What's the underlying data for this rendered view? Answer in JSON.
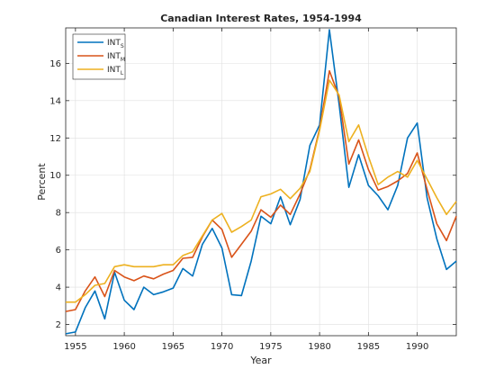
{
  "chart_data": {
    "type": "line",
    "title": "Canadian Interest Rates, 1954-1994",
    "xlabel": "Year",
    "ylabel": "Percent",
    "xlim": [
      1954,
      1994
    ],
    "ylim": [
      1.4,
      17.9
    ],
    "xticks": [
      1955,
      1960,
      1965,
      1970,
      1975,
      1980,
      1985,
      1990
    ],
    "yticks": [
      2,
      4,
      6,
      8,
      10,
      12,
      14,
      16
    ],
    "grid": true,
    "legend_position": "top-left",
    "x": [
      1954,
      1955,
      1956,
      1957,
      1958,
      1959,
      1960,
      1961,
      1962,
      1963,
      1964,
      1965,
      1966,
      1967,
      1968,
      1969,
      1970,
      1971,
      1972,
      1973,
      1974,
      1975,
      1976,
      1977,
      1978,
      1979,
      1980,
      1981,
      1982,
      1983,
      1984,
      1985,
      1986,
      1987,
      1988,
      1989,
      1990,
      1991,
      1992,
      1993,
      1994
    ],
    "series": [
      {
        "name": "INT",
        "subscript": "S",
        "color": "#0072BD",
        "values": [
          1.5,
          1.6,
          2.9,
          3.8,
          2.3,
          4.8,
          3.3,
          2.8,
          4.0,
          3.6,
          3.75,
          3.95,
          5.0,
          4.6,
          6.3,
          7.15,
          6.1,
          3.6,
          3.55,
          5.4,
          7.8,
          7.4,
          8.85,
          7.35,
          8.7,
          11.6,
          12.7,
          17.8,
          13.8,
          9.35,
          11.1,
          9.45,
          8.9,
          8.15,
          9.45,
          12.0,
          12.8,
          8.8,
          6.6,
          4.95,
          5.4
        ]
      },
      {
        "name": "INT",
        "subscript": "M",
        "color": "#D95319",
        "values": [
          2.7,
          2.8,
          3.8,
          4.55,
          3.5,
          4.9,
          4.55,
          4.35,
          4.6,
          4.45,
          4.7,
          4.9,
          5.55,
          5.6,
          6.7,
          7.6,
          7.1,
          5.6,
          6.3,
          7.0,
          8.15,
          7.75,
          8.4,
          7.9,
          9.0,
          10.3,
          12.5,
          15.6,
          14.2,
          10.6,
          11.9,
          10.3,
          9.2,
          9.4,
          9.7,
          10.1,
          11.2,
          9.25,
          7.4,
          6.5,
          7.8
        ]
      },
      {
        "name": "INT",
        "subscript": "L",
        "color": "#EDB120",
        "values": [
          3.2,
          3.2,
          3.6,
          4.1,
          4.2,
          5.1,
          5.2,
          5.1,
          5.1,
          5.1,
          5.2,
          5.2,
          5.7,
          5.9,
          6.75,
          7.6,
          7.95,
          6.95,
          7.25,
          7.6,
          8.85,
          9.0,
          9.25,
          8.75,
          9.3,
          10.2,
          12.4,
          15.1,
          14.3,
          11.8,
          12.7,
          11.0,
          9.5,
          9.9,
          10.2,
          9.9,
          10.8,
          9.8,
          8.8,
          7.9,
          8.6
        ]
      }
    ]
  }
}
